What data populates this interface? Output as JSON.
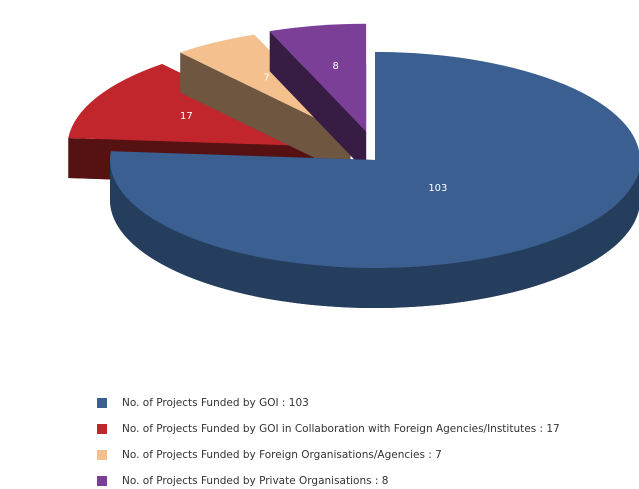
{
  "chart_data": {
    "type": "pie",
    "categories": [
      "No. of Projects Funded by GOI : 103",
      "No. of Projects Funded by GOI in Collaboration with Foreign Agencies/Institutes  : 17",
      "No. of Projects Funded by Foreign Organisations/Agencies : 7",
      "No. of Projects Funded by Private Organisations : 8"
    ],
    "values": [
      103,
      17,
      7,
      8
    ],
    "colors": [
      "#3a5f90",
      "#c0262b",
      "#f4c08e",
      "#7b3f98"
    ]
  }
}
